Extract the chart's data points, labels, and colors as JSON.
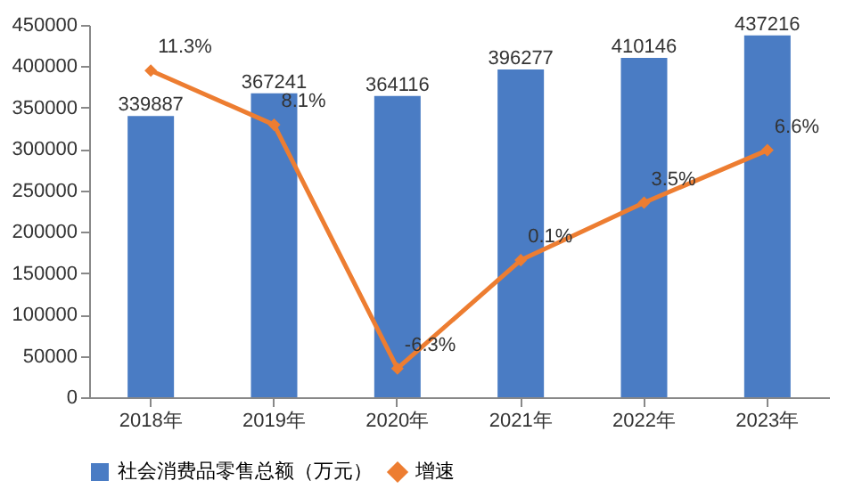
{
  "chart_data": {
    "type": "bar",
    "categories": [
      "2018年",
      "2019年",
      "2020年",
      "2021年",
      "2022年",
      "2023年"
    ],
    "ylim": [
      0,
      450000
    ],
    "yticks": [
      0,
      50000,
      100000,
      150000,
      200000,
      250000,
      300000,
      350000,
      400000,
      450000
    ],
    "y2lim": [
      -8,
      14
    ],
    "grid": false,
    "legend": "bottom",
    "series": [
      {
        "name": "社会消费品零售总额（万元）",
        "color": "#4a7cc4",
        "values": [
          339887,
          367241,
          364116,
          396277,
          410146,
          437216
        ],
        "value_labels": [
          "339887",
          "367241",
          "364116",
          "396277",
          "410146",
          "437216"
        ]
      },
      {
        "name": "增速",
        "type": "line",
        "axis": "y2",
        "color": "#ed7d31",
        "marker": "diamond",
        "line_style": "solid",
        "values": [
          11.3,
          8.1,
          -6.3,
          0.1,
          3.5,
          6.6
        ],
        "value_labels": [
          "11.3%",
          "8.1%",
          "-6.3%",
          "0.1%",
          "3.5%",
          "6.6%"
        ]
      }
    ]
  }
}
